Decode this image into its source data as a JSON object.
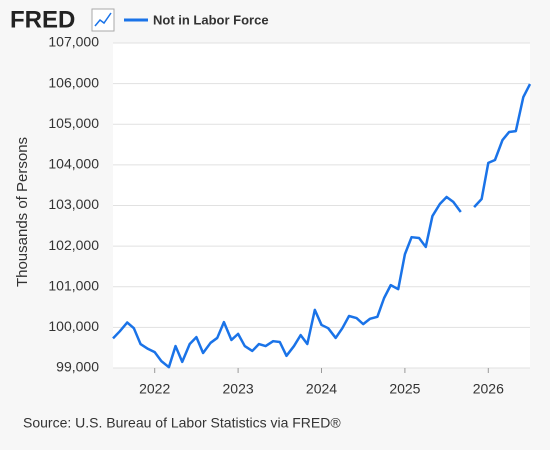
{
  "logo": "FRED",
  "chart_data": {
    "type": "line",
    "y_label": "Thousands of Persons",
    "source": "Source: U.S. Bureau of Labor Statistics via FRED®",
    "x": [
      2021.5,
      2021.58,
      2021.67,
      2021.75,
      2021.83,
      2021.92,
      2022.0,
      2022.08,
      2022.17,
      2022.25,
      2022.33,
      2022.42,
      2022.5,
      2022.58,
      2022.67,
      2022.75,
      2022.83,
      2022.92,
      2023.0,
      2023.08,
      2023.17,
      2023.25,
      2023.33,
      2023.42,
      2023.5,
      2023.58,
      2023.67,
      2023.75,
      2023.83,
      2023.92,
      2024.0,
      2024.08,
      2024.17,
      2024.25,
      2024.33,
      2024.42,
      2024.5,
      2024.58,
      2024.67,
      2024.75,
      2024.83,
      2024.92,
      2025.0,
      2025.08,
      2025.17,
      2025.25,
      2025.33,
      2025.42,
      2025.5,
      2025.58,
      2025.67,
      2025.75,
      2025.83,
      2025.92,
      2026.0,
      2026.08,
      2026.17,
      2026.25,
      2026.33,
      2026.42,
      2026.5
    ],
    "series": [
      {
        "name": "Not in Labor Force",
        "color": "#1a73e8",
        "values": [
          99730,
          99900,
          100120,
          99980,
          99590,
          99470,
          99390,
          99170,
          99020,
          99540,
          99150,
          99590,
          99760,
          99370,
          99620,
          99740,
          100130,
          99690,
          99840,
          99540,
          99420,
          99590,
          99540,
          99660,
          99640,
          99300,
          99540,
          99810,
          99590,
          100430,
          100060,
          99980,
          99740,
          99980,
          100280,
          100230,
          100080,
          100210,
          100260,
          100720,
          101040,
          100940,
          101800,
          102220,
          102200,
          101980,
          102740,
          103040,
          103210,
          103090,
          102840,
          null,
          102960,
          103160,
          104050,
          104120,
          104610,
          104810,
          104830,
          105670,
          105990
        ]
      }
    ],
    "xlim": [
      2021.5,
      2026.5
    ],
    "xticks": [
      2022,
      2023,
      2024,
      2025,
      2026
    ],
    "ylim": [
      99000,
      107000
    ],
    "yticks": [
      {
        "value": 99000,
        "label": "99,000"
      },
      {
        "value": 100000,
        "label": "100,000"
      },
      {
        "value": 101000,
        "label": "101,000"
      },
      {
        "value": 102000,
        "label": "102,000"
      },
      {
        "value": 103000,
        "label": "103,000"
      },
      {
        "value": 104000,
        "label": "104,000"
      },
      {
        "value": 105000,
        "label": "105,000"
      },
      {
        "value": 106000,
        "label": "106,000"
      },
      {
        "value": 107000,
        "label": "107,000"
      }
    ],
    "grid": true
  }
}
